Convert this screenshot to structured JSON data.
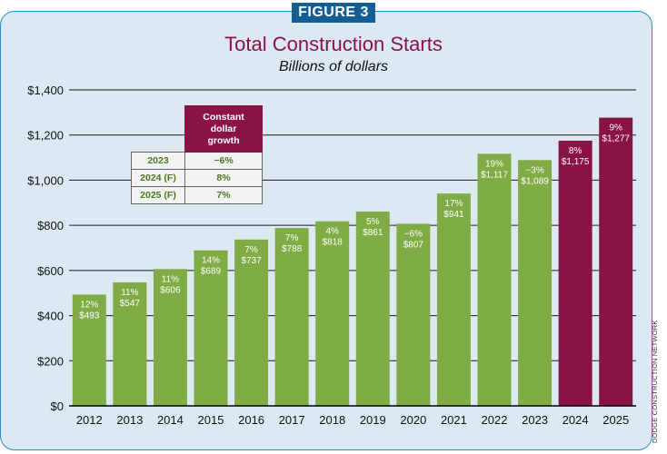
{
  "figure_label": "FIGURE 3",
  "credit": "DODGE CONSTRUCTION NETWORK",
  "colors": {
    "actual": "#7fac45",
    "forecast": "#8b1245",
    "grid": "#1a1a1a"
  },
  "growth_table": {
    "header_line1": "Constant",
    "header_line2": "dollar",
    "header_line3": "growth",
    "rows": [
      {
        "year": "2023",
        "value": "−6%"
      },
      {
        "year": "2024 (F)",
        "value": "8%"
      },
      {
        "year": "2025 (F)",
        "value": "7%"
      }
    ]
  },
  "chart_data": {
    "type": "bar",
    "title": "Total Construction Starts",
    "subtitle": "Billions of dollars",
    "xlabel": "",
    "ylabel": "",
    "ylim": [
      0,
      1400
    ],
    "yticks": [
      0,
      200,
      400,
      600,
      800,
      1000,
      1200,
      1400
    ],
    "ytick_labels": [
      "$0",
      "$200",
      "$400",
      "$600",
      "$800",
      "$1,000",
      "$1,200",
      "$1,400"
    ],
    "grid": true,
    "categories": [
      "2012",
      "2013",
      "2014",
      "2015",
      "2016",
      "2017",
      "2018",
      "2019",
      "2020",
      "2021",
      "2022",
      "2023",
      "2024",
      "2025"
    ],
    "values": [
      493,
      547,
      606,
      689,
      737,
      788,
      818,
      861,
      807,
      941,
      1117,
      1089,
      1175,
      1277
    ],
    "value_labels": [
      "$493",
      "$547",
      "$606",
      "$689",
      "$737",
      "$788",
      "$818",
      "$861",
      "$807",
      "$941",
      "$1,117",
      "$1,089",
      "$1,175",
      "$1,277"
    ],
    "pct_labels": [
      "12%",
      "11%",
      "11%",
      "14%",
      "7%",
      "7%",
      "4%",
      "5%",
      "−6%",
      "17%",
      "19%",
      "−3%",
      "8%",
      "9%"
    ],
    "forecast": [
      false,
      false,
      false,
      false,
      false,
      false,
      false,
      false,
      false,
      false,
      false,
      false,
      true,
      true
    ]
  }
}
